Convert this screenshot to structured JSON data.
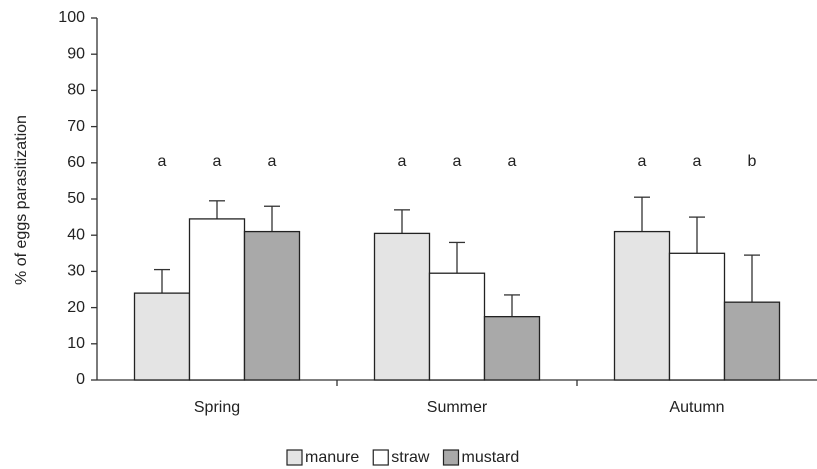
{
  "chart_data": {
    "type": "bar",
    "y_label": "% of eggs parasitization",
    "categories": [
      "Spring",
      "Summer",
      "Autumn"
    ],
    "series": [
      {
        "name": "manure",
        "color": "#e4e4e4",
        "values": [
          24,
          40.5,
          41
        ],
        "errors": [
          6.5,
          6.5,
          9.5
        ],
        "letters": [
          "a",
          "a",
          "a"
        ]
      },
      {
        "name": "straw",
        "color": "#ffffff",
        "values": [
          44.5,
          29.5,
          35
        ],
        "errors": [
          5,
          8.5,
          10
        ],
        "letters": [
          "a",
          "a",
          "a"
        ]
      },
      {
        "name": "mustard",
        "color": "#a9a9a9",
        "values": [
          41,
          17.5,
          21.5
        ],
        "errors": [
          7,
          6,
          13
        ],
        "letters": [
          "a",
          "a",
          "b"
        ]
      }
    ],
    "ylim": [
      0,
      100
    ],
    "yticks": [
      0,
      10,
      20,
      30,
      40,
      50,
      60,
      70,
      80,
      90,
      100
    ],
    "grid": false
  }
}
